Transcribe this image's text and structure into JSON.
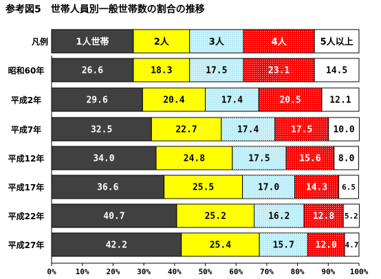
{
  "chart_data": {
    "type": "bar",
    "orientation": "horizontal",
    "stacked": true,
    "percent_stacked": true,
    "title": "参考図5　世帯人員別一般世帯数の割合の推移",
    "legend_label": "凡例",
    "categories": [
      "昭和60年",
      "平成2年",
      "平成7年",
      "平成12年",
      "平成17年",
      "平成22年",
      "平成27年"
    ],
    "series": [
      {
        "name": "1人世帯",
        "color": "#404040",
        "text_color": "#ffffff",
        "pattern": "none",
        "values": [
          26.6,
          29.6,
          32.5,
          34.0,
          36.6,
          40.7,
          42.2
        ]
      },
      {
        "name": "2人",
        "color": "#ffff00",
        "text_color": "#000000",
        "pattern": "none",
        "values": [
          18.3,
          20.4,
          22.7,
          24.8,
          25.5,
          25.2,
          25.4
        ]
      },
      {
        "name": "3人",
        "color": "#bdeef8",
        "text_color": "#000000",
        "pattern": "dots",
        "values": [
          17.5,
          17.4,
          17.4,
          17.5,
          17.0,
          16.2,
          15.7
        ]
      },
      {
        "name": "4人",
        "color": "#ff0000",
        "text_color": "#ffffff",
        "pattern": "dots",
        "values": [
          23.1,
          20.5,
          17.5,
          15.6,
          14.3,
          12.8,
          12.0
        ]
      },
      {
        "name": "5人以上",
        "color": "#ffffff",
        "text_color": "#000000",
        "pattern": "none",
        "values": [
          14.5,
          12.1,
          10.0,
          8.0,
          6.5,
          5.2,
          4.7
        ]
      }
    ],
    "xlim": [
      0,
      100
    ],
    "xtick_labels": [
      "0%",
      "10%",
      "20%",
      "30%",
      "40%",
      "50%",
      "60%",
      "70%",
      "80%",
      "90%",
      "100%"
    ],
    "grid": false
  }
}
